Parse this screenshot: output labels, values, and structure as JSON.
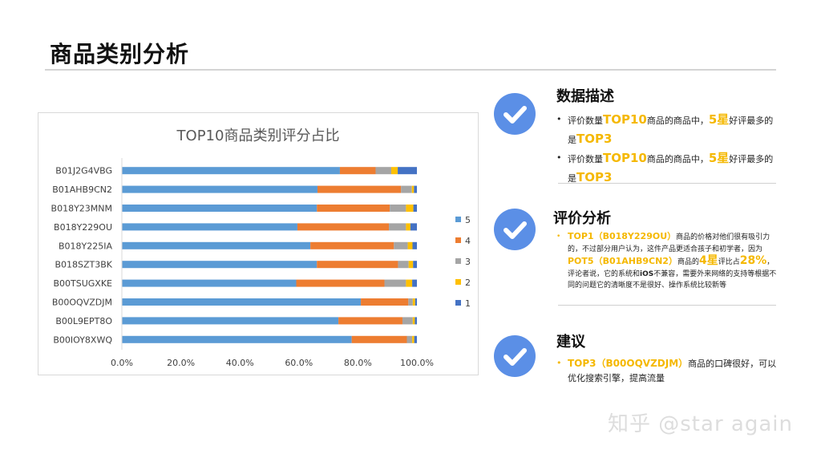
{
  "page": {
    "title": "商品类别分析"
  },
  "chart_data": {
    "type": "bar",
    "orientation": "horizontal",
    "stacked": "percent",
    "title": "TOP10商品类别评分占比",
    "categories": [
      "B01J2G4VBG",
      "B01AHB9CN2",
      "B018Y23MNM",
      "B018Y229OU",
      "B018Y225IA",
      "B018SZT3BK",
      "B00TSUGXKE",
      "B00OQVZDJM",
      "B00L9EPT8O",
      "B00IOY8XWQ"
    ],
    "series": [
      {
        "name": "5",
        "color": "#5b9bd5",
        "values": [
          73.9,
          66.3,
          66.1,
          59.5,
          63.9,
          66.1,
          59.1,
          81.0,
          73.4,
          77.9
        ]
      },
      {
        "name": "4",
        "color": "#ed7d31",
        "values": [
          12.1,
          28.3,
          24.7,
          31.0,
          28.3,
          27.5,
          29.9,
          16.1,
          21.7,
          18.7
        ]
      },
      {
        "name": "3",
        "color": "#a5a5a5",
        "values": [
          5.3,
          3.7,
          5.5,
          5.8,
          4.7,
          3.6,
          7.3,
          1.5,
          3.5,
          1.8
        ]
      },
      {
        "name": "2",
        "color": "#ffc000",
        "values": [
          2.2,
          0.7,
          2.5,
          1.5,
          1.6,
          1.5,
          2.1,
          0.8,
          0.7,
          0.7
        ]
      },
      {
        "name": "1",
        "color": "#4472c4",
        "values": [
          6.5,
          1.0,
          1.2,
          2.2,
          1.5,
          1.3,
          1.6,
          0.6,
          0.7,
          0.9
        ]
      }
    ],
    "xlim": [
      0,
      1
    ],
    "xticks": [
      "0.0%",
      "20.0%",
      "40.0%",
      "60.0%",
      "80.0%",
      "100.0%"
    ],
    "legend": {
      "placement": "right",
      "order": [
        "5",
        "4",
        "3",
        "2",
        "1"
      ]
    },
    "grid": false
  },
  "sections": [
    {
      "heading": "数据描述",
      "icon": "check-circle-icon",
      "bullets": [
        [
          "评价数量",
          "TOP10",
          "商品的商品中，",
          "5星",
          "好评最多的是",
          "TOP3"
        ],
        [
          "评价数量",
          "TOP10",
          "商品的商品中，",
          "5星",
          "好评最多的是",
          "TOP3"
        ]
      ]
    },
    {
      "heading": "评价分析",
      "icon": "check-circle-icon",
      "p1": "TOP1（B018Y229OU）",
      "p2": "商品的价格对他们很有吸引力的，不过部分用户认为，这件产品更适合孩子和初学者，因为",
      "p3": "POT5（B01AHB9CN2）",
      "p4": "商品的",
      "p5": "4星",
      "p6": "评比占",
      "p7": "28%",
      "p8": "，评论者说，它的系统和",
      "p9": "iOS",
      "p10": "不兼容，需要外来网络的支持等根据不同的问题它的清晰度不是很好、操作系统比较新等"
    },
    {
      "heading": "建议",
      "icon": "check-circle-icon",
      "p1": "TOP3（B00OQVZDJM）",
      "p2": "商品的口碑很好，可以优化搜索引擎，提高流量"
    }
  ],
  "watermark": "知乎 @star again",
  "bullet_char": "•"
}
